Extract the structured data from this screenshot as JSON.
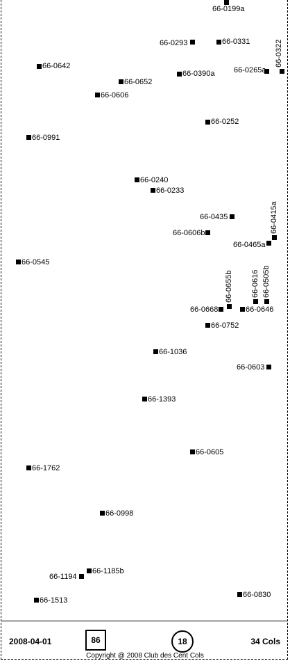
{
  "points": [
    {
      "label": "66-0199a"
    },
    {
      "label": "66-0293"
    },
    {
      "label": "66-0331"
    },
    {
      "label": "66-0322"
    },
    {
      "label": "66-0642"
    },
    {
      "label": "66-0390a"
    },
    {
      "label": "66-0265a"
    },
    {
      "label": "66-0652"
    },
    {
      "label": "66-0606"
    },
    {
      "label": "66-0252"
    },
    {
      "label": "66-0991"
    },
    {
      "label": "66-0240"
    },
    {
      "label": "66-0233"
    },
    {
      "label": "66-0435"
    },
    {
      "label": "66-0415a"
    },
    {
      "label": "66-0606b"
    },
    {
      "label": "66-0465a"
    },
    {
      "label": "66-0545"
    },
    {
      "label": "66-0655b"
    },
    {
      "label": "66-0616"
    },
    {
      "label": "66-0505b"
    },
    {
      "label": "66-0668"
    },
    {
      "label": "66-0646"
    },
    {
      "label": "66-0752"
    },
    {
      "label": "66-1036"
    },
    {
      "label": "66-0603"
    },
    {
      "label": "66-1393"
    },
    {
      "label": "66-0605"
    },
    {
      "label": "66-1762"
    },
    {
      "label": "66-0998"
    },
    {
      "label": "66-1185b"
    },
    {
      "label": "66-1194"
    },
    {
      "label": "66-0830"
    },
    {
      "label": "66-1513"
    }
  ],
  "footer": {
    "date": "2008-04-01",
    "box_value": "86",
    "circle_value": "18",
    "count": "34 Cols",
    "copyright": "Copyright @ 2008 Club des Cent Cols"
  }
}
